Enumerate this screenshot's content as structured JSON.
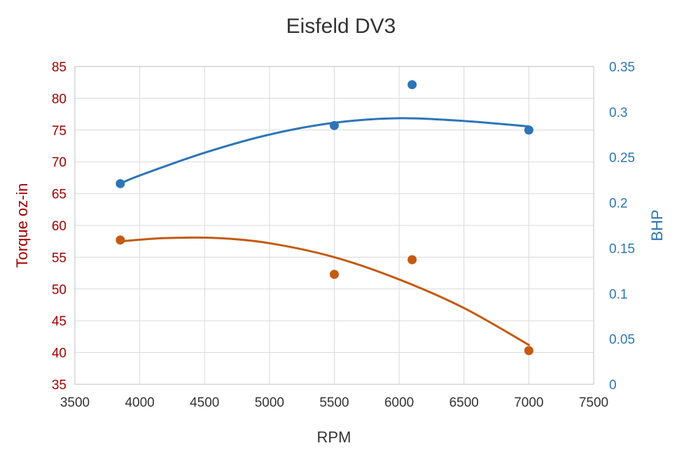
{
  "chart_data": {
    "type": "scatter",
    "title": "Eisfeld DV3",
    "xlabel": "RPM",
    "ylabel_left": "Torque oz-in",
    "ylabel_right": "BHP",
    "xlim": [
      3500,
      7500
    ],
    "ylim_left": [
      35,
      85
    ],
    "ylim_right": [
      0,
      0.35
    ],
    "x_ticks": [
      "3500",
      "4000",
      "4500",
      "5000",
      "5500",
      "6000",
      "6500",
      "7000",
      "7500"
    ],
    "y_ticks_left": [
      "35",
      "40",
      "45",
      "50",
      "55",
      "60",
      "65",
      "70",
      "75",
      "80",
      "85"
    ],
    "y_ticks_right": [
      "0",
      "0.05",
      "0.1",
      "0.15",
      "0.2",
      "0.25",
      "0.3",
      "0.35"
    ],
    "grid": true,
    "series": [
      {
        "axis": "left",
        "color": "#c55a11",
        "points": [
          {
            "x": 3850,
            "y": 57.7
          },
          {
            "x": 5500,
            "y": 52.3
          },
          {
            "x": 6100,
            "y": 54.6
          },
          {
            "x": 7000,
            "y": 40.3
          }
        ],
        "trendline": {
          "type": "polynomial-2",
          "points": [
            {
              "x": 3850,
              "y": 57.5
            },
            {
              "x": 4200,
              "y": 58.0
            },
            {
              "x": 4600,
              "y": 58.0
            },
            {
              "x": 5000,
              "y": 57.2
            },
            {
              "x": 5500,
              "y": 55.0
            },
            {
              "x": 6000,
              "y": 51.5
            },
            {
              "x": 6500,
              "y": 47.0
            },
            {
              "x": 7000,
              "y": 41.2
            }
          ]
        }
      },
      {
        "axis": "right",
        "color": "#2e75b6",
        "points": [
          {
            "x": 3850,
            "y": 0.221
          },
          {
            "x": 5500,
            "y": 0.285
          },
          {
            "x": 6100,
            "y": 0.33
          },
          {
            "x": 7000,
            "y": 0.28
          }
        ],
        "trendline": {
          "type": "polynomial-2",
          "points": [
            {
              "x": 3850,
              "y": 0.221
            },
            {
              "x": 4000,
              "y": 0.23
            },
            {
              "x": 4500,
              "y": 0.255
            },
            {
              "x": 5000,
              "y": 0.275
            },
            {
              "x": 5500,
              "y": 0.288
            },
            {
              "x": 6000,
              "y": 0.293
            },
            {
              "x": 6500,
              "y": 0.29
            },
            {
              "x": 7000,
              "y": 0.284
            }
          ]
        }
      }
    ]
  },
  "colors": {
    "left_axis_text": "#a00000",
    "right_axis_text": "#2e75b6"
  }
}
